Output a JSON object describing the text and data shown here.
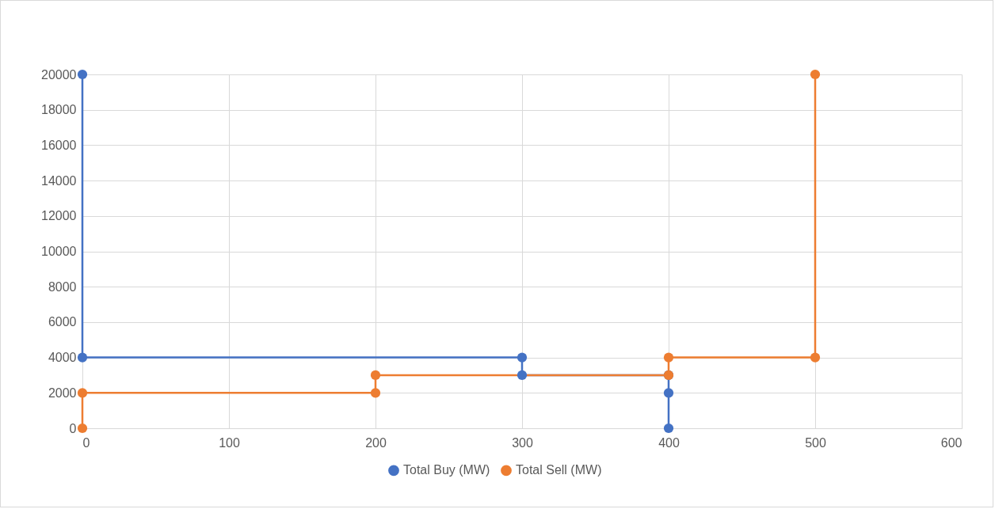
{
  "chart_data": {
    "type": "line",
    "xlim": [
      0,
      600
    ],
    "xticks": [
      0,
      100,
      200,
      300,
      400,
      500,
      600
    ],
    "ylim": [
      0,
      20000
    ],
    "yticks": [
      0,
      2000,
      4000,
      6000,
      8000,
      10000,
      12000,
      14000,
      16000,
      18000,
      20000
    ],
    "grid": true,
    "legend": "bottom",
    "marker": "circle",
    "line_style": "solid",
    "series": [
      {
        "name": "Total Buy (MW)",
        "color": "#4472c4",
        "x": [
          0,
          0,
          300,
          300,
          400,
          400,
          400
        ],
        "values": [
          20000,
          4000,
          4000,
          3000,
          3000,
          2000,
          0
        ]
      },
      {
        "name": "Total Sell (MW)",
        "color": "#ed7d31",
        "x": [
          0,
          0,
          200,
          200,
          400,
          400,
          500,
          500
        ],
        "values": [
          0,
          2000,
          2000,
          3000,
          3000,
          4000,
          4000,
          20000
        ]
      }
    ]
  }
}
